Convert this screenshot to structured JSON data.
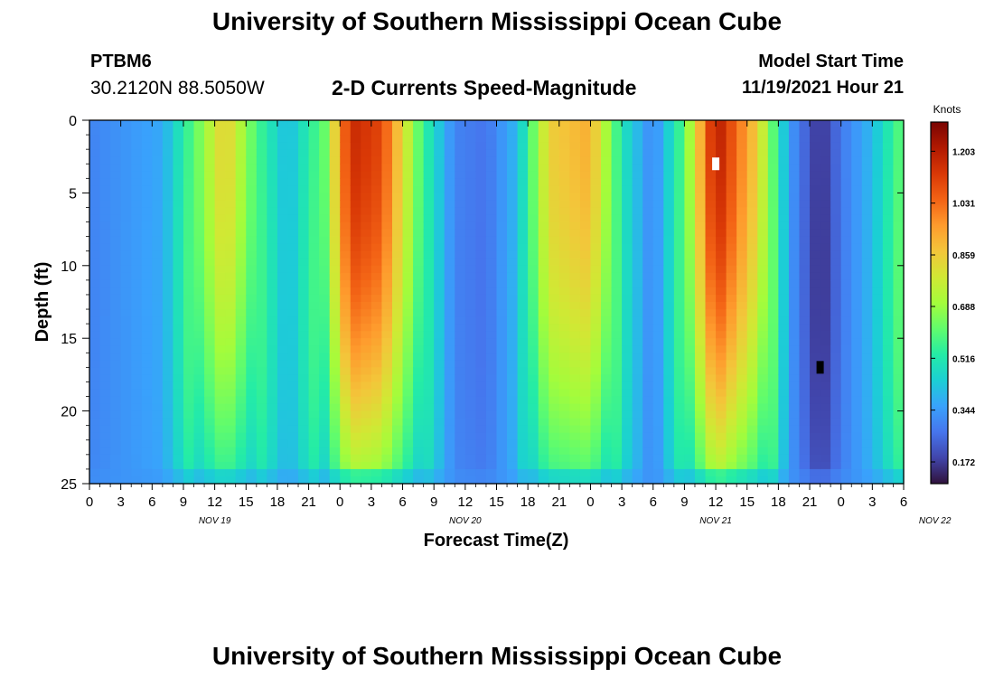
{
  "header": {
    "title": "University of Southern Mississippi Ocean Cube",
    "station_id": "PTBM6",
    "coordinates": "30.2120N  88.5050W",
    "subtitle": "2-D Currents Speed-Magnitude",
    "model_start_label": "Model Start Time",
    "model_start_value": "11/19/2021 Hour 21"
  },
  "footer": {
    "title": "University of Southern Mississippi Ocean Cube"
  },
  "chart_data": {
    "type": "heatmap",
    "title": "2-D Currents Speed-Magnitude",
    "xlabel": "Forecast Time(Z)",
    "ylabel": "Depth (ft)",
    "x_tick_labels": [
      "0",
      "3",
      "6",
      "9",
      "12",
      "15",
      "18",
      "21",
      "0",
      "3",
      "6",
      "9",
      "12",
      "15",
      "18",
      "21",
      "0",
      "3",
      "6",
      "9",
      "12",
      "15",
      "18",
      "21",
      "0",
      "3",
      "6"
    ],
    "x_range_hours": [
      0,
      78
    ],
    "date_labels": [
      {
        "label": "NOV 19",
        "hour": 12
      },
      {
        "label": "NOV 20",
        "hour": 36
      },
      {
        "label": "NOV 21",
        "hour": 60
      },
      {
        "label": "NOV 22",
        "hour": 81
      }
    ],
    "y_ticks": [
      0,
      5,
      10,
      15,
      20,
      25
    ],
    "y_range_ft": [
      0,
      25
    ],
    "colorbar": {
      "unit": "Knots",
      "ticks": [
        "1.203",
        "1.031",
        "0.859",
        "0.688",
        "0.516",
        "0.344",
        "0.172"
      ],
      "tick_values": [
        1.203,
        1.031,
        0.859,
        0.688,
        0.516,
        0.344,
        0.172
      ],
      "range": [
        0.1,
        1.3
      ],
      "colors": [
        "#30123b",
        "#4145ab",
        "#4675ed",
        "#39a2fc",
        "#1bcfd4",
        "#24eca6",
        "#61fc6c",
        "#a4fc3b",
        "#d1e834",
        "#f3c63a",
        "#fe9b2d",
        "#f36315",
        "#d93806",
        "#b11901",
        "#7a0402"
      ]
    },
    "surface_speed_profile": [
      {
        "hour": 0,
        "speed": 0.3
      },
      {
        "hour": 7,
        "speed": 0.37
      },
      {
        "hour": 10,
        "speed": 0.6
      },
      {
        "hour": 13,
        "speed": 0.86
      },
      {
        "hour": 16,
        "speed": 0.58
      },
      {
        "hour": 19,
        "speed": 0.4
      },
      {
        "hour": 22.5,
        "speed": 0.62
      },
      {
        "hour": 25,
        "speed": 1.17
      },
      {
        "hour": 28,
        "speed": 1.1
      },
      {
        "hour": 32,
        "speed": 0.55
      },
      {
        "hour": 35,
        "speed": 0.3
      },
      {
        "hour": 38,
        "speed": 0.27
      },
      {
        "hour": 41,
        "speed": 0.4
      },
      {
        "hour": 44,
        "speed": 0.85
      },
      {
        "hour": 48,
        "speed": 0.92
      },
      {
        "hour": 51,
        "speed": 0.5
      },
      {
        "hour": 54,
        "speed": 0.3
      },
      {
        "hour": 57,
        "speed": 0.6
      },
      {
        "hour": 60,
        "speed": 1.22
      },
      {
        "hour": 64,
        "speed": 0.85
      },
      {
        "hour": 67,
        "speed": 0.35
      },
      {
        "hour": 70,
        "speed": 0.15
      },
      {
        "hour": 72,
        "speed": 0.28
      },
      {
        "hour": 75,
        "speed": 0.4
      },
      {
        "hour": 78,
        "speed": 0.62
      }
    ],
    "notable_cells": [
      {
        "hour": 60,
        "depth_ft": 3,
        "value": "missing (white)"
      },
      {
        "hour": 70,
        "depth_ft": 17,
        "value": "min (black)"
      }
    ]
  }
}
